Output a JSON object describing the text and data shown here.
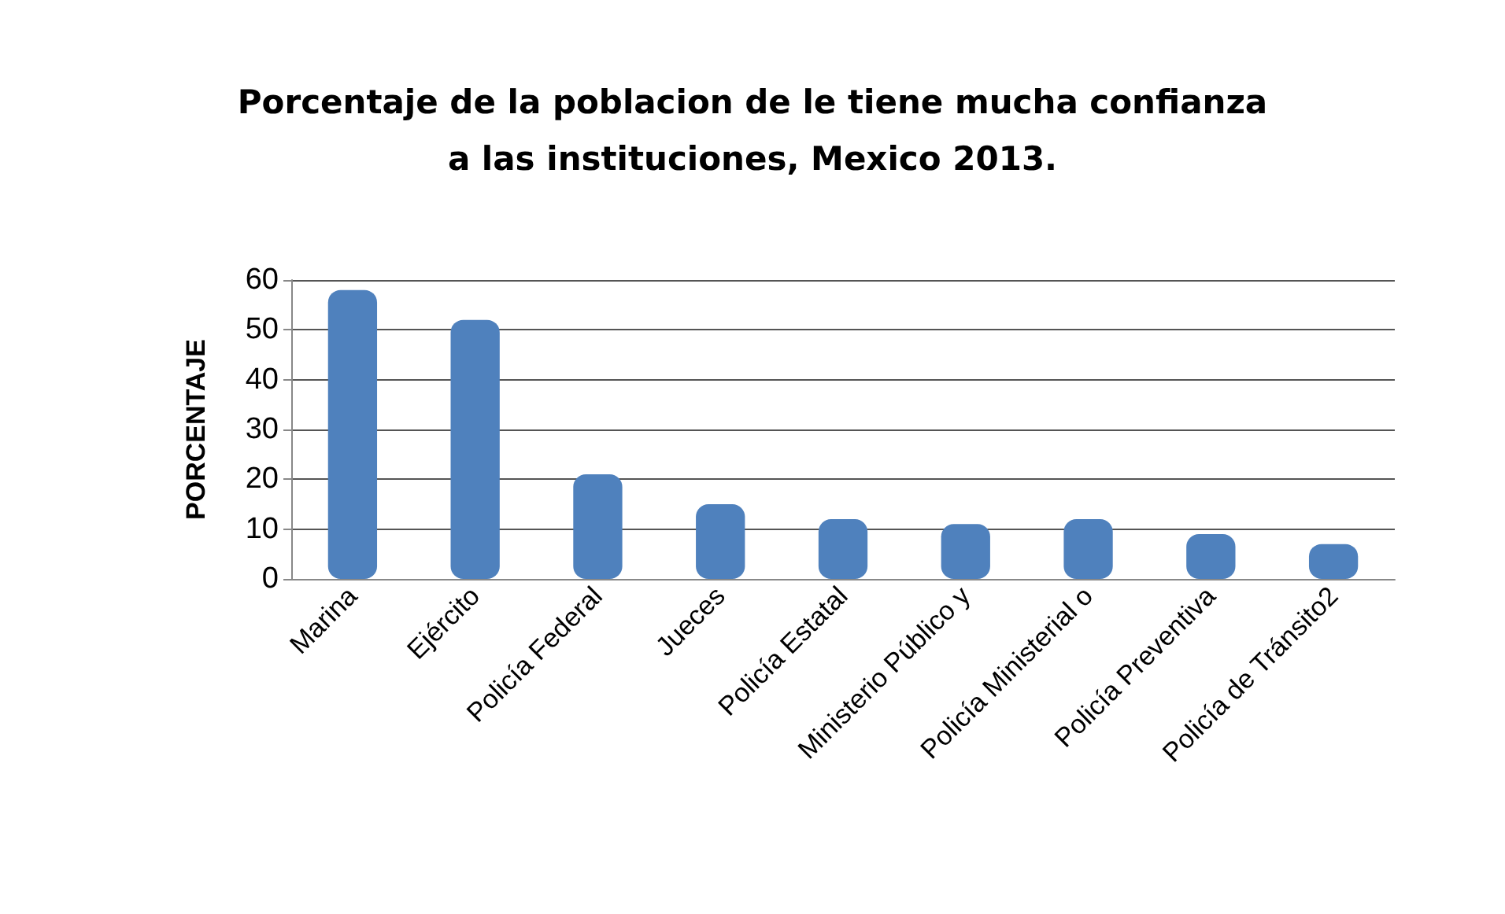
{
  "chart_data": {
    "type": "bar",
    "title": "Porcentaje de la poblacion de le tiene mucha confianza\na las instituciones, Mexico 2013.",
    "ylabel": "PORCENTAJE",
    "categories": [
      "Marina",
      "Ejército",
      "Policía Federal",
      "Jueces",
      "Policía Estatal",
      "Ministerio Público y",
      "Policía Ministerial o",
      "Policía Preventiva",
      "Policía de Tránsito2"
    ],
    "values": [
      58,
      52,
      21,
      15,
      12,
      11,
      12,
      9,
      7
    ],
    "color": "#4f81bd",
    "ylim": [
      0,
      60
    ],
    "yticks": [
      0,
      10,
      20,
      30,
      40,
      50,
      60
    ],
    "grid": "y"
  }
}
